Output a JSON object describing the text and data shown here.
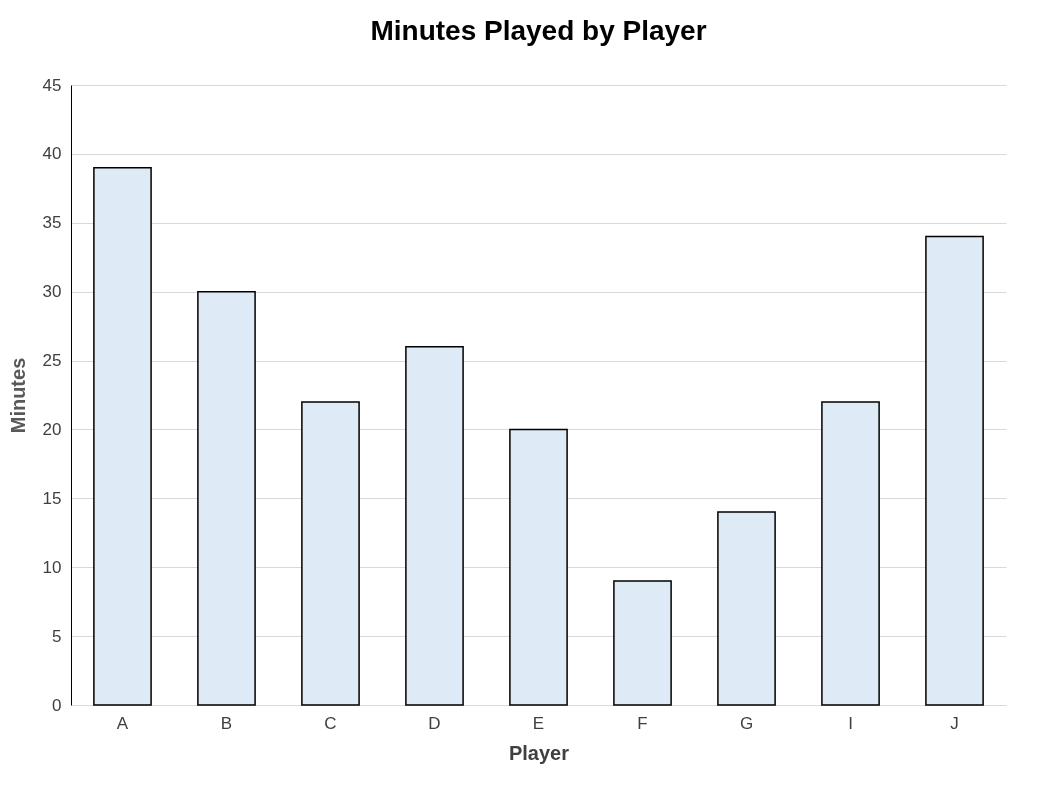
{
  "chart_data": {
    "type": "bar",
    "title": "Minutes Played by Player",
    "xlabel": "Player",
    "ylabel": "Minutes",
    "categories": [
      "A",
      "B",
      "C",
      "D",
      "E",
      "F",
      "G",
      "I",
      "J"
    ],
    "values": [
      39,
      30,
      22,
      26,
      20,
      9,
      14,
      22,
      34
    ],
    "color": "#deeaf6",
    "ylim": [
      0,
      45
    ],
    "yticks": [
      0,
      5,
      10,
      15,
      20,
      25,
      30,
      35,
      40,
      45
    ],
    "grid": "y"
  }
}
